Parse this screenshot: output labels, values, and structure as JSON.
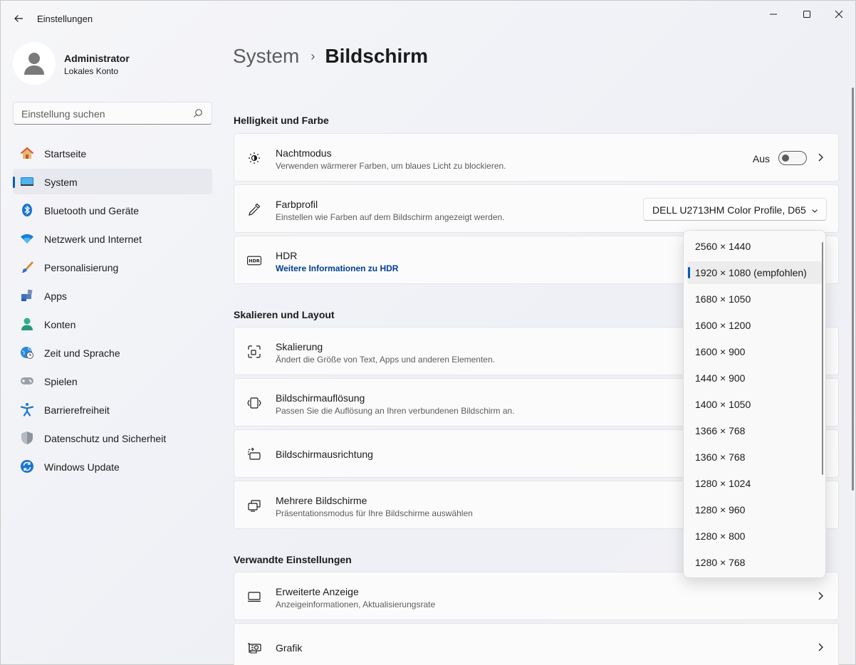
{
  "window": {
    "title": "Einstellungen"
  },
  "user": {
    "name": "Administrator",
    "account_type": "Lokales Konto"
  },
  "search": {
    "placeholder": "Einstellung suchen"
  },
  "nav": [
    {
      "label": "Startseite",
      "icon": "home-icon"
    },
    {
      "label": "System",
      "icon": "system-display-icon",
      "active": true
    },
    {
      "label": "Bluetooth und Geräte",
      "icon": "bluetooth-icon"
    },
    {
      "label": "Netzwerk und Internet",
      "icon": "wifi-icon"
    },
    {
      "label": "Personalisierung",
      "icon": "paintbrush-icon"
    },
    {
      "label": "Apps",
      "icon": "apps-icon"
    },
    {
      "label": "Konten",
      "icon": "person-icon"
    },
    {
      "label": "Zeit und Sprache",
      "icon": "globe-clock-icon"
    },
    {
      "label": "Spielen",
      "icon": "gamepad-icon"
    },
    {
      "label": "Barrierefreiheit",
      "icon": "accessibility-icon"
    },
    {
      "label": "Datenschutz und Sicherheit",
      "icon": "shield-icon"
    },
    {
      "label": "Windows Update",
      "icon": "update-icon"
    }
  ],
  "breadcrumb": {
    "parent": "System",
    "separator": "›",
    "current": "Bildschirm"
  },
  "sections": {
    "brightness": "Helligkeit und Farbe",
    "scale": "Skalieren und Layout",
    "related": "Verwandte Einstellungen"
  },
  "cards": {
    "night_mode": {
      "title": "Nachtmodus",
      "subtitle": "Verwenden wärmerer Farben, um blaues Licht zu blockieren.",
      "state_label": "Aus"
    },
    "color_profile": {
      "title": "Farbprofil",
      "subtitle": "Einstellen wie Farben auf dem Bildschirm angezeigt werden.",
      "selected": "DELL U2713HM Color Profile, D65"
    },
    "hdr": {
      "title": "HDR",
      "link": "Weitere Informationen zu HDR"
    },
    "scaling": {
      "title": "Skalierung",
      "subtitle": "Ändert die Größe von Text, Apps und anderen Elementen."
    },
    "resolution": {
      "title": "Bildschirmauflösung",
      "subtitle": "Passen Sie die Auflösung an Ihren verbundenen Bildschirm an."
    },
    "orientation": {
      "title": "Bildschirmausrichtung"
    },
    "multi": {
      "title": "Mehrere Bildschirme",
      "subtitle": "Präsentationsmodus für Ihre Bildschirme auswählen"
    },
    "advanced": {
      "title": "Erweiterte Anzeige",
      "subtitle": "Anzeigeinformationen, Aktualisierungsrate"
    },
    "graphics": {
      "title": "Grafik"
    }
  },
  "resolution_options": [
    "2560 × 1440",
    "1920 × 1080 (empfohlen)",
    "1680 × 1050",
    "1600 × 1200",
    "1600 × 900",
    "1440 × 900",
    "1400 × 1050",
    "1366 × 768",
    "1360 × 768",
    "1280 × 1024",
    "1280 × 960",
    "1280 × 800",
    "1280 × 768"
  ],
  "resolution_selected_index": 1,
  "colors": {
    "accent": "#005fb8",
    "link": "#003e92"
  }
}
